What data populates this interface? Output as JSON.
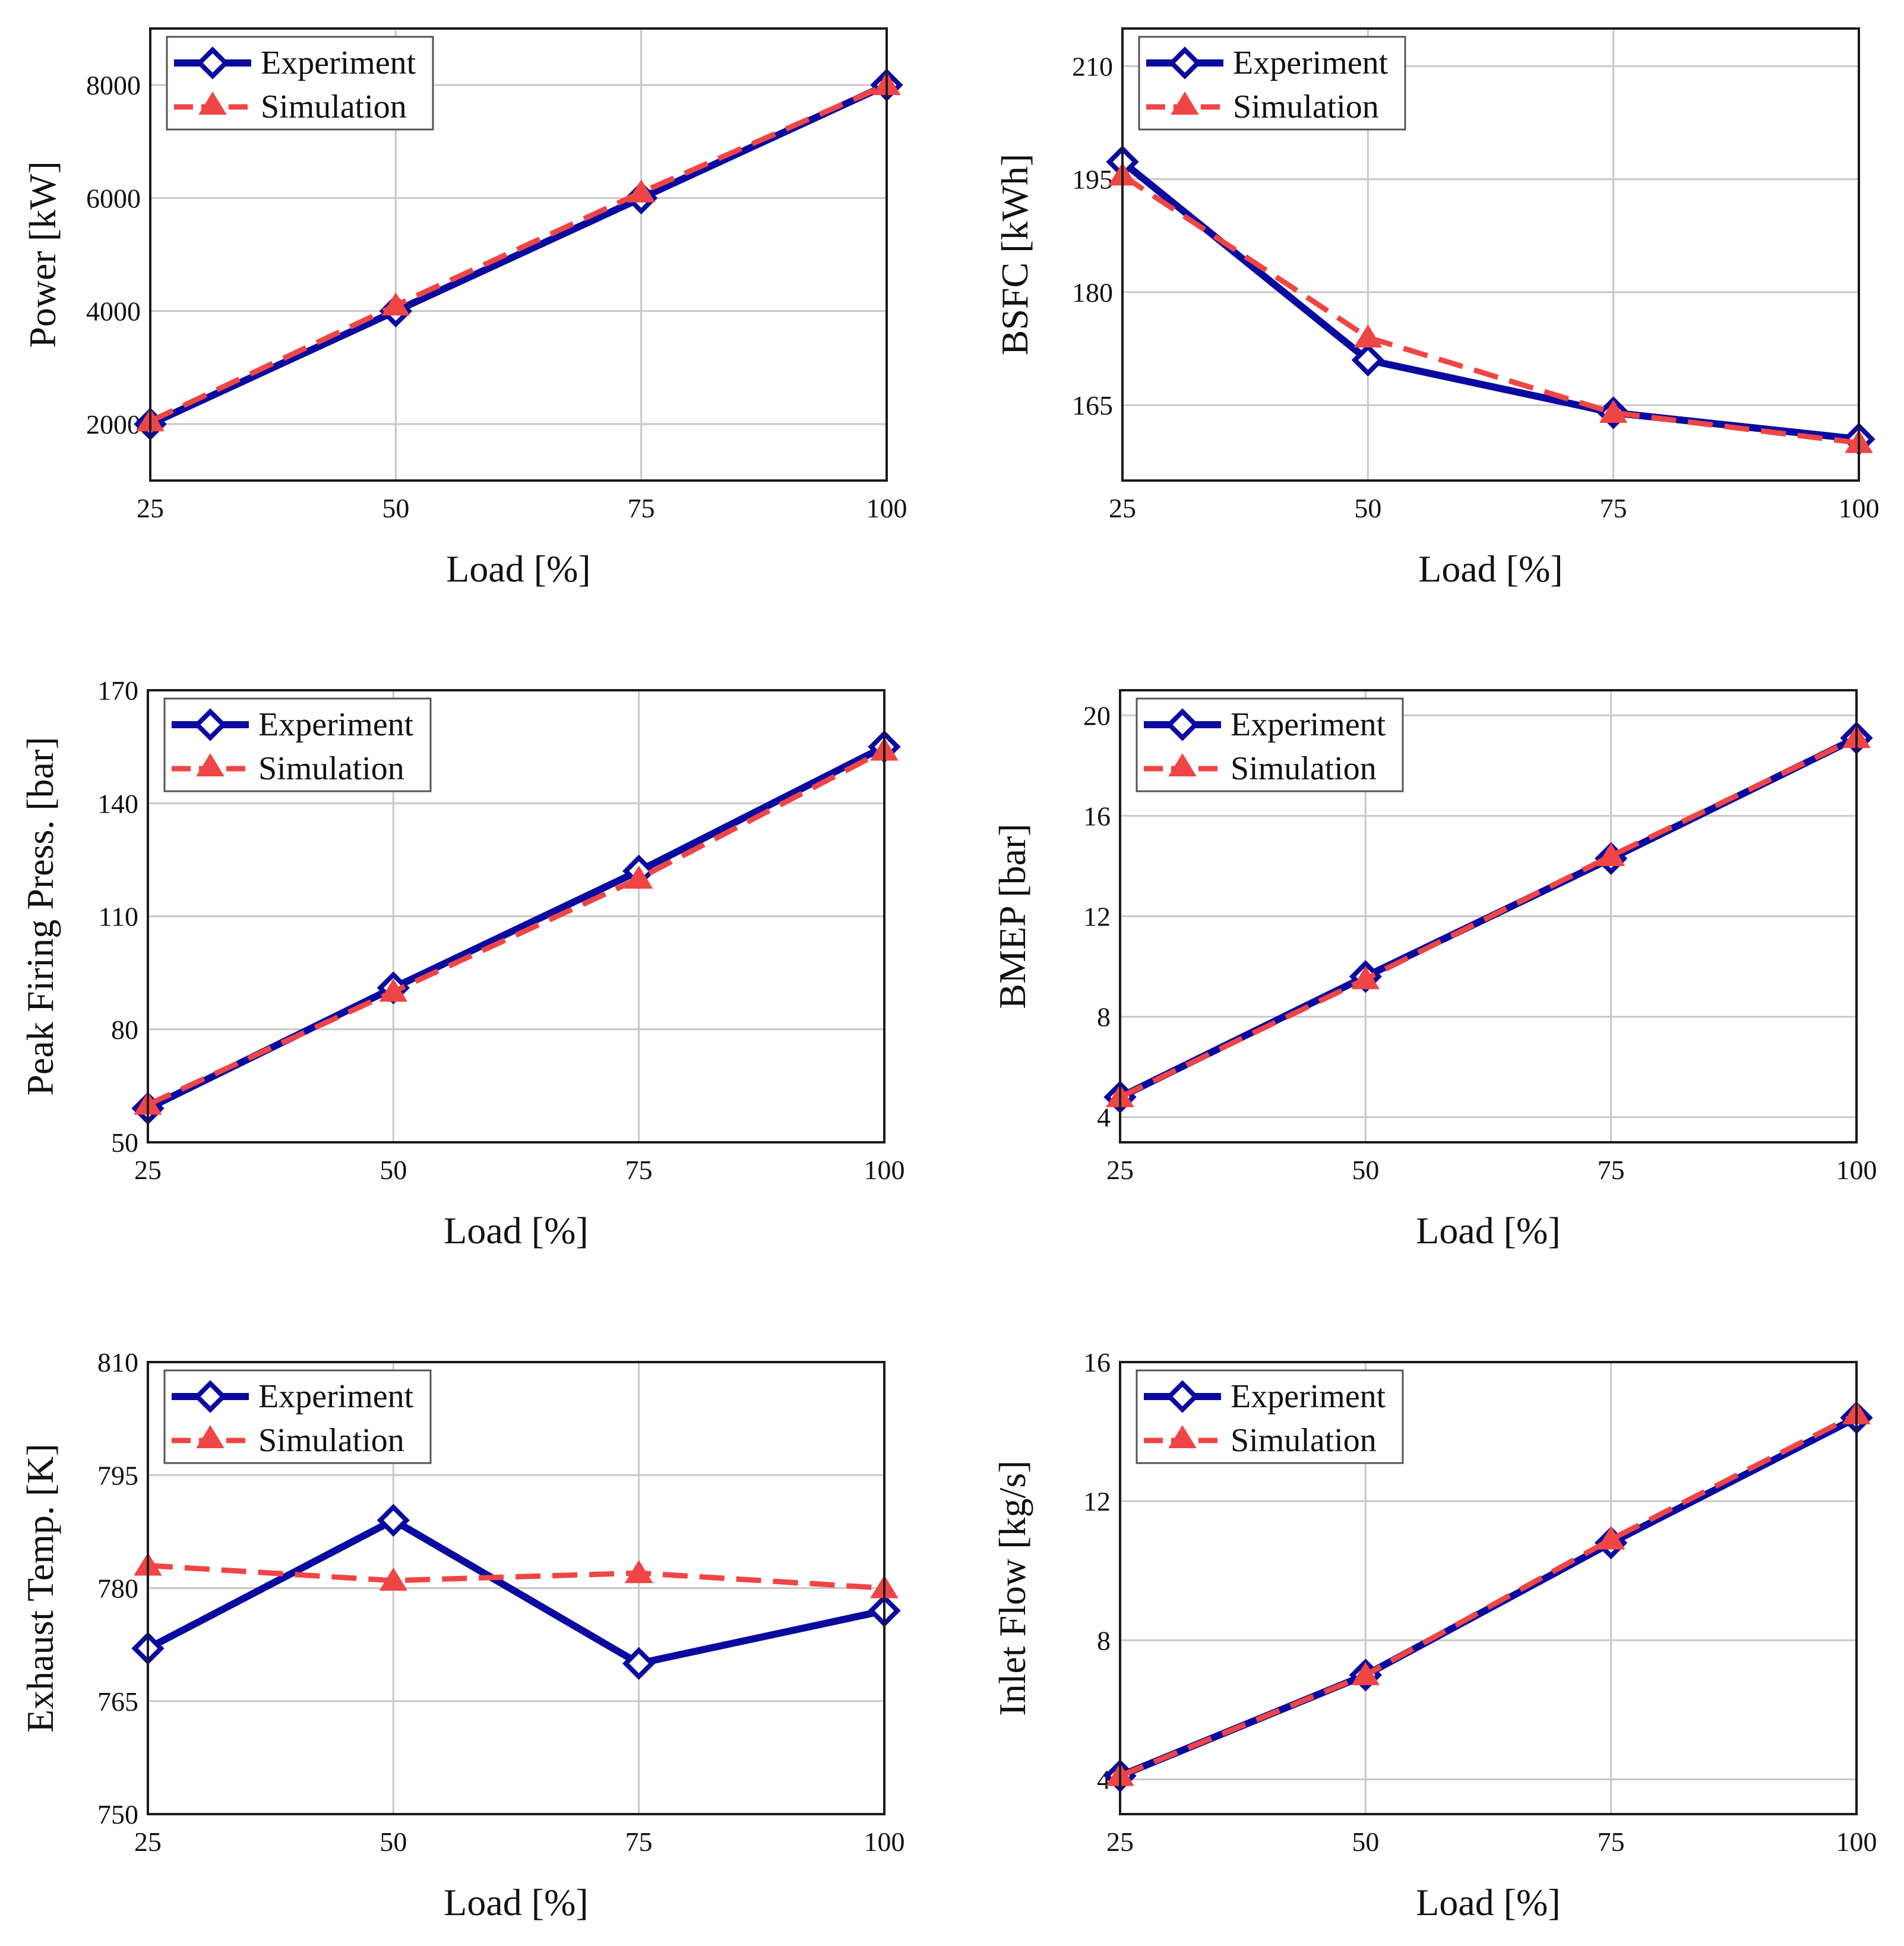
{
  "colors": {
    "experiment": "#0a0aa0",
    "simulation": "#f04545"
  },
  "chart_data": [
    {
      "type": "line",
      "x": [
        25,
        50,
        75,
        100
      ],
      "xlabel": "Load [%]",
      "ylabel": "Power [kW]",
      "xticks": [
        "25",
        "50",
        "75",
        "100"
      ],
      "yticks": [
        2000,
        4000,
        6000,
        8000
      ],
      "ytick_labels": [
        "2000",
        "4000",
        "6000",
        "8000"
      ],
      "xlim": [
        25,
        100
      ],
      "ylim": [
        1000,
        9000
      ],
      "grid": true,
      "legend": "top-left",
      "series": [
        {
          "name": "Experiment",
          "marker": "diamond",
          "values": [
            2000,
            4000,
            6000,
            8000
          ]
        },
        {
          "name": "Simulation",
          "marker": "triangle",
          "values": [
            2050,
            4100,
            6100,
            8000
          ]
        }
      ]
    },
    {
      "type": "line",
      "x": [
        25,
        50,
        75,
        100
      ],
      "xlabel": "Load [%]",
      "ylabel": "BSFC [kWh]",
      "xticks": [
        "25",
        "50",
        "75",
        "100"
      ],
      "yticks": [
        165,
        180,
        195,
        210
      ],
      "ytick_labels": [
        "165",
        "180",
        "195",
        "210"
      ],
      "xlim": [
        25,
        100
      ],
      "ylim": [
        155,
        215
      ],
      "grid": true,
      "legend": "top-left",
      "series": [
        {
          "name": "Experiment",
          "marker": "diamond",
          "values": [
            197.3,
            171,
            164,
            160.5
          ]
        },
        {
          "name": "Simulation",
          "marker": "triangle",
          "values": [
            195.5,
            174,
            164,
            160
          ]
        }
      ]
    },
    {
      "type": "line",
      "x": [
        25,
        50,
        75,
        100
      ],
      "xlabel": "Load [%]",
      "ylabel": "Peak Firing Press. [bar]",
      "xticks": [
        "25",
        "50",
        "75",
        "100"
      ],
      "yticks": [
        50,
        80,
        110,
        140,
        170
      ],
      "ytick_labels": [
        "50",
        "80",
        "110",
        "140",
        "170"
      ],
      "xlim": [
        25,
        100
      ],
      "ylim": [
        50,
        170
      ],
      "grid": true,
      "legend": "top-left",
      "series": [
        {
          "name": "Experiment",
          "marker": "diamond",
          "values": [
            59,
            91,
            122,
            155
          ]
        },
        {
          "name": "Simulation",
          "marker": "triangle",
          "values": [
            60,
            90,
            120,
            154
          ]
        }
      ]
    },
    {
      "type": "line",
      "x": [
        25,
        50,
        75,
        100
      ],
      "xlabel": "Load [%]",
      "ylabel": "BMEP [bar]",
      "xticks": [
        "25",
        "50",
        "75",
        "100"
      ],
      "yticks": [
        4,
        8,
        12,
        16,
        20
      ],
      "ytick_labels": [
        "4",
        "8",
        "12",
        "16",
        "20"
      ],
      "xlim": [
        25,
        100
      ],
      "ylim": [
        3,
        21
      ],
      "grid": true,
      "legend": "top-left",
      "series": [
        {
          "name": "Experiment",
          "marker": "diamond",
          "values": [
            4.8,
            9.6,
            14.3,
            19.1
          ]
        },
        {
          "name": "Simulation",
          "marker": "triangle",
          "values": [
            4.8,
            9.5,
            14.4,
            19.1
          ]
        }
      ]
    },
    {
      "type": "line",
      "x": [
        25,
        50,
        75,
        100
      ],
      "xlabel": "Load [%]",
      "ylabel": "Exhaust Temp. [K]",
      "xticks": [
        "25",
        "50",
        "75",
        "100"
      ],
      "yticks": [
        750,
        765,
        780,
        795,
        810
      ],
      "ytick_labels": [
        "750",
        "765",
        "780",
        "795",
        "810"
      ],
      "xlim": [
        25,
        100
      ],
      "ylim": [
        750,
        810
      ],
      "grid": true,
      "legend": "top-left",
      "series": [
        {
          "name": "Experiment",
          "marker": "diamond",
          "values": [
            772,
            789,
            770,
            777
          ]
        },
        {
          "name": "Simulation",
          "marker": "triangle",
          "values": [
            783,
            781,
            782,
            780
          ]
        }
      ]
    },
    {
      "type": "line",
      "x": [
        25,
        50,
        75,
        100
      ],
      "xlabel": "Load [%]",
      "ylabel": "Inlet Flow [kg/s]",
      "xticks": [
        "25",
        "50",
        "75",
        "100"
      ],
      "yticks": [
        4,
        8,
        12,
        16
      ],
      "ytick_labels": [
        "4",
        "8",
        "12",
        "16"
      ],
      "xlim": [
        25,
        100
      ],
      "ylim": [
        3,
        16
      ],
      "grid": true,
      "legend": "top-left",
      "series": [
        {
          "name": "Experiment",
          "marker": "diamond",
          "values": [
            4.1,
            7,
            10.8,
            14.4
          ]
        },
        {
          "name": "Simulation",
          "marker": "triangle",
          "values": [
            4.1,
            7,
            10.9,
            14.5
          ]
        }
      ]
    }
  ]
}
